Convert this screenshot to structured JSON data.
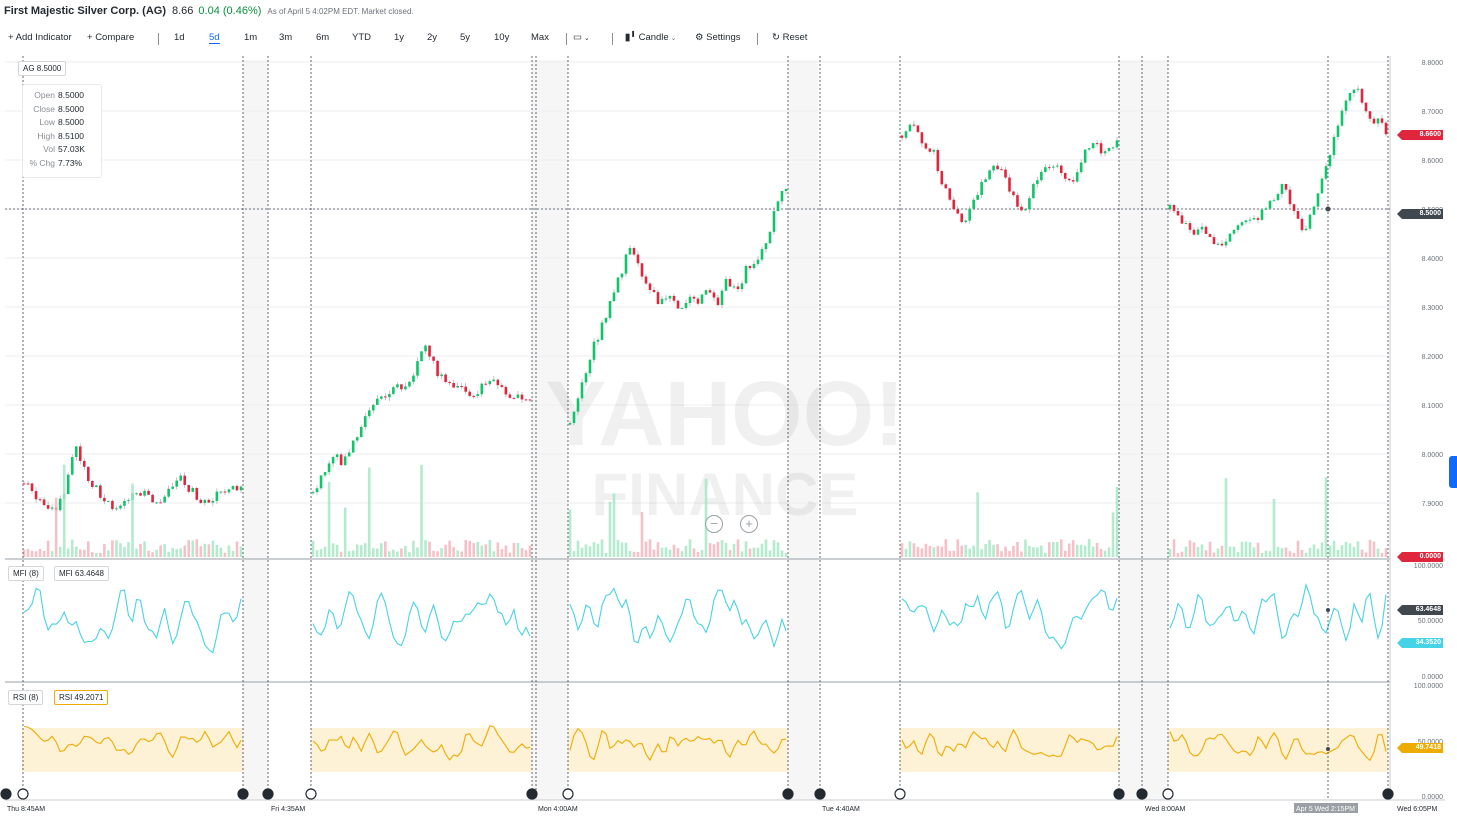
{
  "header": {
    "name": "First Majestic Silver Corp. (AG)",
    "price": "8.66",
    "change": "0.04 (0.46%)",
    "as_of": "As of April 5 4:02PM EDT. Market closed."
  },
  "toolbar": {
    "add_indicator": "Add Indicator",
    "compare": "Compare",
    "ranges": [
      "1d",
      "5d",
      "1m",
      "3m",
      "6m",
      "YTD",
      "1y",
      "2y",
      "5y",
      "10y",
      "Max"
    ],
    "active_range": "5d",
    "chart_type": "Candle",
    "settings": "Settings",
    "reset": "Reset"
  },
  "symbol_badge": "AG 8.5000",
  "tooltip": {
    "rows": [
      {
        "k": "Open",
        "v": "8.5000"
      },
      {
        "k": "Close",
        "v": "8.5000"
      },
      {
        "k": "Low",
        "v": "8.5000"
      },
      {
        "k": "High",
        "v": "8.5100"
      },
      {
        "k": "Vol",
        "v": "57.03K"
      },
      {
        "k": "% Chg",
        "v": "7.73%"
      }
    ]
  },
  "watermark": {
    "line1": "YAHOO!",
    "line2": "FINANCE"
  },
  "price_tags": {
    "last": "8.6600",
    "crosshair": "8.5000",
    "volume": "0.0000"
  },
  "mfi": {
    "badge_name": "MFI (8)",
    "badge_value": "MFI 63.4648",
    "tag_value": "63.4648",
    "tag_low": "34.3520"
  },
  "rsi": {
    "badge_name": "RSI (8)",
    "badge_value": "RSI 49.2071",
    "tag_value": "49.7418"
  },
  "colors": {
    "up": "#10c46a",
    "down": "#e0263d",
    "mfi": "#46d3e6",
    "rsi": "#efac00",
    "accent": "#0f69ff"
  },
  "chart_data": {
    "type": "candlestick",
    "title": "First Majestic Silver Corp. (AG)",
    "range": "5d",
    "price_axis": {
      "min": 7.5,
      "max": 8.8,
      "ticks": [
        "8.8000",
        "8.7000",
        "8.6000",
        "8.5000",
        "8.4000",
        "8.3000",
        "8.2000",
        "8.1000",
        "8.0000",
        "7.9000"
      ]
    },
    "mfi_axis": {
      "ticks": [
        "100.0000",
        "50.0000",
        "0.0000"
      ]
    },
    "rsi_axis": {
      "ticks": [
        "100.0000",
        "50.0000",
        "0.0000"
      ]
    },
    "x_labels": [
      "Thu 8:45AM",
      "Fri 4:35AM",
      "Mon 4:00AM",
      "Tue 4:40AM",
      "Wed 8:00AM",
      "Apr 5 Wed 2:15PM",
      "Wed 6:05PM"
    ],
    "sessions": [
      {
        "label": "Thu",
        "close_path": [
          7.94,
          7.92,
          7.9,
          7.89,
          7.93,
          8.02,
          7.96,
          7.93,
          7.9,
          7.88,
          7.9,
          7.93,
          7.91,
          7.89,
          7.92,
          7.95,
          7.93,
          7.91,
          7.9,
          7.92,
          7.94,
          7.93
        ]
      },
      {
        "label": "Fri",
        "close_path": [
          7.92,
          7.96,
          8.0,
          7.98,
          8.03,
          8.08,
          8.1,
          8.12,
          8.15,
          8.13,
          8.18,
          8.22,
          8.17,
          8.15,
          8.14,
          8.12,
          8.13,
          8.15,
          8.14,
          8.12,
          8.11,
          8.1
        ]
      },
      {
        "label": "Mon",
        "close_path": [
          8.06,
          8.12,
          8.2,
          8.25,
          8.3,
          8.36,
          8.42,
          8.38,
          8.35,
          8.3,
          8.33,
          8.29,
          8.32,
          8.3,
          8.34,
          8.31,
          8.36,
          8.33,
          8.38,
          8.4,
          8.44,
          8.5,
          8.55
        ]
      },
      {
        "label": "Tue",
        "close_path": [
          8.65,
          8.68,
          8.64,
          8.62,
          8.55,
          8.5,
          8.47,
          8.52,
          8.56,
          8.6,
          8.57,
          8.52,
          8.5,
          8.55,
          8.58,
          8.6,
          8.55,
          8.57,
          8.62,
          8.63,
          8.61,
          8.65
        ]
      },
      {
        "label": "Wed",
        "close_path": [
          8.5,
          8.48,
          8.45,
          8.47,
          8.44,
          8.42,
          8.46,
          8.48,
          8.47,
          8.5,
          8.52,
          8.55,
          8.5,
          8.46,
          8.5,
          8.58,
          8.65,
          8.72,
          8.75,
          8.7,
          8.68,
          8.66
        ]
      }
    ]
  }
}
